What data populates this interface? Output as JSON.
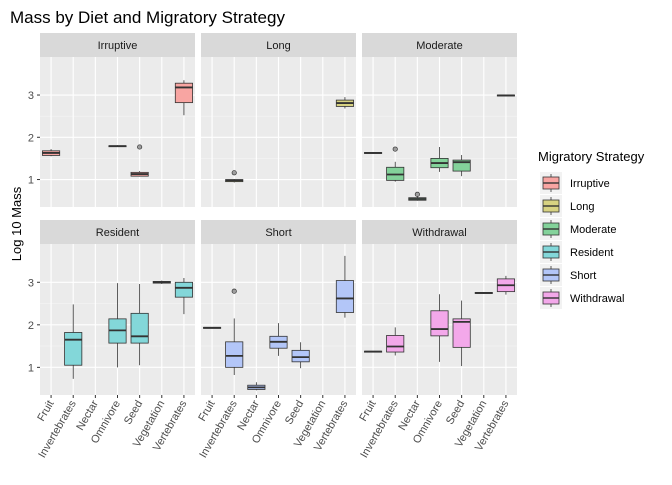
{
  "chart_data": {
    "type": "boxplot",
    "title": "Mass by Diet and Migratory Strategy",
    "xlabel": "",
    "ylabel": "Log 10 Mass",
    "ylim": [
      0.35,
      3.9
    ],
    "yticks": [
      1,
      2,
      3
    ],
    "facet_rows": 2,
    "facet_cols": 3,
    "categories": [
      "Fruit",
      "Invertebrates",
      "Nectar",
      "Omnivore",
      "Seed",
      "Vegetation",
      "Vertebrates"
    ],
    "legend": {
      "title": "Migratory Strategy",
      "position": "right",
      "items": [
        "Irruptive",
        "Long",
        "Moderate",
        "Resident",
        "Short",
        "Withdrawal"
      ]
    },
    "colors": {
      "Irruptive": "#F8A5A2",
      "Long": "#D7D282",
      "Moderate": "#83D29A",
      "Resident": "#83D7D9",
      "Short": "#B3C6F8",
      "Withdrawal": "#F3A8EA"
    },
    "panels": [
      {
        "facet": "Irruptive",
        "boxes": [
          {
            "category": "Fruit",
            "min": 1.55,
            "q1": 1.57,
            "median": 1.63,
            "q3": 1.68,
            "max": 1.72,
            "outliers": []
          },
          {
            "category": "Omnivore",
            "min": 1.77,
            "q1": 1.78,
            "median": 1.79,
            "q3": 1.8,
            "max": 1.81,
            "outliers": []
          },
          {
            "category": "Seed",
            "min": 1.07,
            "q1": 1.08,
            "median": 1.13,
            "q3": 1.17,
            "max": 1.2,
            "outliers": [
              1.77
            ]
          },
          {
            "category": "Vertebrates",
            "min": 2.52,
            "q1": 2.82,
            "median": 3.18,
            "q3": 3.28,
            "max": 3.35,
            "outliers": []
          }
        ]
      },
      {
        "facet": "Long",
        "boxes": [
          {
            "category": "Invertebrates",
            "min": 0.93,
            "q1": 0.95,
            "median": 0.98,
            "q3": 1.0,
            "max": 1.01,
            "outliers": [
              1.16
            ]
          },
          {
            "category": "Vertebrates",
            "min": 2.68,
            "q1": 2.73,
            "median": 2.81,
            "q3": 2.88,
            "max": 2.95,
            "outliers": []
          }
        ]
      },
      {
        "facet": "Moderate",
        "boxes": [
          {
            "category": "Fruit",
            "min": 1.62,
            "q1": 1.62,
            "median": 1.63,
            "q3": 1.64,
            "max": 1.64,
            "outliers": []
          },
          {
            "category": "Invertebrates",
            "min": 0.95,
            "q1": 0.98,
            "median": 1.12,
            "q3": 1.29,
            "max": 1.42,
            "outliers": [
              1.72
            ]
          },
          {
            "category": "Nectar",
            "min": 0.5,
            "q1": 0.51,
            "median": 0.54,
            "q3": 0.57,
            "max": 0.6,
            "outliers": [
              0.65
            ]
          },
          {
            "category": "Omnivore",
            "min": 1.18,
            "q1": 1.28,
            "median": 1.39,
            "q3": 1.5,
            "max": 1.77,
            "outliers": []
          },
          {
            "category": "Seed",
            "min": 1.08,
            "q1": 1.2,
            "median": 1.41,
            "q3": 1.46,
            "max": 1.58,
            "outliers": []
          },
          {
            "category": "Vertebrates",
            "min": 2.97,
            "q1": 2.98,
            "median": 2.99,
            "q3": 3.0,
            "max": 3.01,
            "outliers": []
          }
        ]
      },
      {
        "facet": "Resident",
        "boxes": [
          {
            "category": "Invertebrates",
            "min": 0.73,
            "q1": 1.05,
            "median": 1.65,
            "q3": 1.82,
            "max": 2.48,
            "outliers": []
          },
          {
            "category": "Omnivore",
            "min": 1.0,
            "q1": 1.57,
            "median": 1.87,
            "q3": 2.14,
            "max": 2.98,
            "outliers": []
          },
          {
            "category": "Seed",
            "min": 1.05,
            "q1": 1.57,
            "median": 1.73,
            "q3": 2.27,
            "max": 2.96,
            "outliers": []
          },
          {
            "category": "Vegetation",
            "min": 2.96,
            "q1": 2.98,
            "median": 3.0,
            "q3": 3.02,
            "max": 3.04,
            "outliers": []
          },
          {
            "category": "Vertebrates",
            "min": 2.25,
            "q1": 2.65,
            "median": 2.87,
            "q3": 3.0,
            "max": 3.1,
            "outliers": []
          }
        ]
      },
      {
        "facet": "Short",
        "boxes": [
          {
            "category": "Fruit",
            "min": 1.92,
            "q1": 1.92,
            "median": 1.93,
            "q3": 1.94,
            "max": 1.94,
            "outliers": []
          },
          {
            "category": "Invertebrates",
            "min": 0.82,
            "q1": 1.0,
            "median": 1.27,
            "q3": 1.6,
            "max": 2.15,
            "outliers": [
              2.79
            ]
          },
          {
            "category": "Nectar",
            "min": 0.46,
            "q1": 0.48,
            "median": 0.53,
            "q3": 0.58,
            "max": 0.65,
            "outliers": []
          },
          {
            "category": "Omnivore",
            "min": 1.27,
            "q1": 1.45,
            "median": 1.6,
            "q3": 1.73,
            "max": 2.04,
            "outliers": []
          },
          {
            "category": "Seed",
            "min": 0.98,
            "q1": 1.13,
            "median": 1.24,
            "q3": 1.4,
            "max": 1.59,
            "outliers": []
          },
          {
            "category": "Vertebrates",
            "min": 2.17,
            "q1": 2.29,
            "median": 2.62,
            "q3": 3.04,
            "max": 3.62,
            "outliers": []
          }
        ]
      },
      {
        "facet": "Withdrawal",
        "boxes": [
          {
            "category": "Fruit",
            "min": 1.36,
            "q1": 1.36,
            "median": 1.37,
            "q3": 1.38,
            "max": 1.38,
            "outliers": []
          },
          {
            "category": "Invertebrates",
            "min": 1.28,
            "q1": 1.36,
            "median": 1.49,
            "q3": 1.75,
            "max": 1.94,
            "outliers": []
          },
          {
            "category": "Omnivore",
            "min": 1.13,
            "q1": 1.74,
            "median": 1.9,
            "q3": 2.33,
            "max": 2.72,
            "outliers": []
          },
          {
            "category": "Seed",
            "min": 1.03,
            "q1": 1.47,
            "median": 2.07,
            "q3": 2.14,
            "max": 2.57,
            "outliers": []
          },
          {
            "category": "Vegetation",
            "min": 2.73,
            "q1": 2.74,
            "median": 2.75,
            "q3": 2.76,
            "max": 2.77,
            "outliers": []
          },
          {
            "category": "Vertebrates",
            "min": 2.71,
            "q1": 2.78,
            "median": 2.93,
            "q3": 3.08,
            "max": 3.15,
            "outliers": []
          }
        ]
      }
    ]
  }
}
